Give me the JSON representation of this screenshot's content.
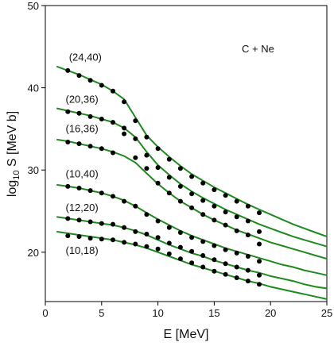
{
  "chart_data": {
    "type": "scatter",
    "xlabel": "E [MeV]",
    "ylabel": "log10 S [MeV b]",
    "xlim": [
      0,
      25
    ],
    "ylim": [
      14,
      50
    ],
    "x_ticks": [
      0,
      5,
      10,
      15,
      20,
      25
    ],
    "y_ticks": [
      20,
      30,
      40,
      50
    ],
    "grid": false,
    "annotation": "C + Ne",
    "line_color": "#1e8a1e",
    "point_color": "#000000",
    "series": [
      {
        "name": "(24,40)",
        "label_at": [
          2.1,
          43.3
        ],
        "points": [
          [
            2,
            42.1
          ],
          [
            3,
            41.5
          ],
          [
            4,
            40.9
          ],
          [
            5,
            40.3
          ],
          [
            6,
            39.6
          ],
          [
            7,
            38.3
          ],
          [
            8,
            36.0
          ],
          [
            9,
            34.0
          ],
          [
            10,
            32.6
          ],
          [
            11,
            31.3
          ],
          [
            12,
            30.2
          ],
          [
            13,
            29.2
          ],
          [
            14,
            28.4
          ],
          [
            15,
            27.6
          ],
          [
            16,
            26.9
          ],
          [
            17,
            26.2
          ],
          [
            18,
            25.6
          ],
          [
            19,
            24.8
          ]
        ],
        "curve": [
          [
            1,
            42.6
          ],
          [
            2,
            42.1
          ],
          [
            3,
            41.6
          ],
          [
            4,
            41.0
          ],
          [
            5,
            40.4
          ],
          [
            6,
            39.6
          ],
          [
            7,
            38.6
          ],
          [
            8,
            36.4
          ],
          [
            9,
            34.2
          ],
          [
            10,
            32.8
          ],
          [
            11,
            31.6
          ],
          [
            12,
            30.5
          ],
          [
            13,
            29.5
          ],
          [
            14,
            28.7
          ],
          [
            15,
            27.9
          ],
          [
            16,
            27.2
          ],
          [
            17,
            26.5
          ],
          [
            18,
            25.8
          ],
          [
            19,
            25.2
          ],
          [
            20,
            24.6
          ],
          [
            21,
            24.0
          ],
          [
            22,
            23.4
          ],
          [
            23,
            22.9
          ],
          [
            24,
            22.4
          ],
          [
            25,
            21.9
          ]
        ]
      },
      {
        "name": "(20,36)",
        "label_at": [
          1.8,
          38.2
        ],
        "points": [
          [
            2,
            37.1
          ],
          [
            3,
            36.9
          ],
          [
            4,
            36.5
          ],
          [
            5,
            36.2
          ],
          [
            6,
            35.8
          ],
          [
            7,
            35.1
          ],
          [
            8,
            33.8
          ],
          [
            9,
            31.8
          ],
          [
            10,
            30.3
          ],
          [
            11,
            29.1
          ],
          [
            12,
            28.0
          ],
          [
            13,
            27.1
          ],
          [
            14,
            26.3
          ],
          [
            15,
            25.6
          ],
          [
            16,
            24.9
          ],
          [
            17,
            24.3
          ],
          [
            18,
            23.8
          ],
          [
            19,
            22.5
          ]
        ],
        "curve": [
          [
            1,
            37.5
          ],
          [
            2,
            37.2
          ],
          [
            3,
            36.9
          ],
          [
            4,
            36.6
          ],
          [
            5,
            36.2
          ],
          [
            6,
            35.8
          ],
          [
            7,
            35.1
          ],
          [
            8,
            34.0
          ],
          [
            9,
            32.2
          ],
          [
            10,
            30.6
          ],
          [
            11,
            29.4
          ],
          [
            12,
            28.3
          ],
          [
            13,
            27.4
          ],
          [
            14,
            26.6
          ],
          [
            15,
            25.9
          ],
          [
            16,
            25.2
          ],
          [
            17,
            24.6
          ],
          [
            18,
            24.0
          ],
          [
            19,
            23.4
          ],
          [
            20,
            22.9
          ],
          [
            21,
            22.4
          ],
          [
            22,
            21.9
          ],
          [
            23,
            21.5
          ],
          [
            24,
            21.1
          ],
          [
            25,
            20.7
          ]
        ]
      },
      {
        "name": "(16,36)",
        "label_at": [
          1.8,
          34.6
        ],
        "points": [
          [
            2,
            33.4
          ],
          [
            3,
            33.2
          ],
          [
            4,
            32.9
          ],
          [
            5,
            32.6
          ],
          [
            6,
            32.1
          ],
          [
            7,
            34.4
          ],
          [
            8,
            31.5
          ],
          [
            9,
            30.2
          ],
          [
            10,
            28.4
          ],
          [
            11,
            27.2
          ],
          [
            12,
            26.2
          ],
          [
            13,
            25.4
          ],
          [
            14,
            24.6
          ],
          [
            15,
            23.9
          ],
          [
            16,
            23.3
          ],
          [
            17,
            22.6
          ],
          [
            18,
            22.1
          ],
          [
            19,
            21.0
          ]
        ],
        "curve": [
          [
            1,
            33.7
          ],
          [
            2,
            33.5
          ],
          [
            3,
            33.2
          ],
          [
            4,
            32.9
          ],
          [
            5,
            32.6
          ],
          [
            6,
            32.2
          ],
          [
            7,
            31.7
          ],
          [
            8,
            30.9
          ],
          [
            9,
            29.6
          ],
          [
            10,
            28.3
          ],
          [
            11,
            27.2
          ],
          [
            12,
            26.2
          ],
          [
            13,
            25.4
          ],
          [
            14,
            24.6
          ],
          [
            15,
            23.9
          ],
          [
            16,
            23.3
          ],
          [
            17,
            22.7
          ],
          [
            18,
            22.2
          ],
          [
            19,
            21.7
          ],
          [
            20,
            21.2
          ],
          [
            21,
            20.8
          ],
          [
            22,
            20.4
          ],
          [
            23,
            20.0
          ],
          [
            24,
            19.6
          ],
          [
            25,
            19.2
          ]
        ]
      },
      {
        "name": "(10,40)",
        "label_at": [
          1.8,
          29.1
        ],
        "points": [
          [
            2,
            28.0
          ],
          [
            3,
            27.8
          ],
          [
            4,
            27.5
          ],
          [
            5,
            27.2
          ],
          [
            6,
            26.8
          ],
          [
            7,
            26.2
          ],
          [
            8,
            25.6
          ],
          [
            9,
            24.6
          ],
          [
            10,
            23.8
          ],
          [
            11,
            23.0
          ],
          [
            12,
            22.4
          ],
          [
            13,
            21.8
          ],
          [
            14,
            21.3
          ],
          [
            15,
            20.8
          ],
          [
            16,
            20.3
          ],
          [
            17,
            19.9
          ],
          [
            18,
            19.5
          ],
          [
            19,
            18.9
          ]
        ],
        "curve": [
          [
            1,
            28.2
          ],
          [
            2,
            28.0
          ],
          [
            3,
            27.8
          ],
          [
            4,
            27.5
          ],
          [
            5,
            27.2
          ],
          [
            6,
            26.8
          ],
          [
            7,
            26.3
          ],
          [
            8,
            25.6
          ],
          [
            9,
            24.8
          ],
          [
            10,
            24.0
          ],
          [
            11,
            23.3
          ],
          [
            12,
            22.6
          ],
          [
            13,
            22.0
          ],
          [
            14,
            21.5
          ],
          [
            15,
            21.0
          ],
          [
            16,
            20.5
          ],
          [
            17,
            20.1
          ],
          [
            18,
            19.7
          ],
          [
            19,
            19.3
          ],
          [
            20,
            18.9
          ],
          [
            21,
            18.5
          ],
          [
            22,
            18.2
          ],
          [
            23,
            17.8
          ],
          [
            24,
            17.5
          ],
          [
            25,
            17.2
          ]
        ]
      },
      {
        "name": "(12,20)",
        "label_at": [
          1.8,
          25.0
        ],
        "points": [
          [
            2,
            24.1
          ],
          [
            3,
            23.9
          ],
          [
            4,
            23.7
          ],
          [
            5,
            23.5
          ],
          [
            6,
            23.4
          ],
          [
            7,
            23.0
          ],
          [
            8,
            22.5
          ],
          [
            9,
            22.2
          ],
          [
            10,
            21.8
          ],
          [
            11,
            21.1
          ],
          [
            12,
            20.6
          ],
          [
            13,
            20.1
          ],
          [
            14,
            19.6
          ],
          [
            15,
            19.1
          ],
          [
            16,
            18.6
          ],
          [
            17,
            18.2
          ],
          [
            18,
            17.8
          ],
          [
            19,
            17.2
          ]
        ],
        "curve": [
          [
            1,
            24.3
          ],
          [
            2,
            24.1
          ],
          [
            3,
            23.9
          ],
          [
            4,
            23.7
          ],
          [
            5,
            23.5
          ],
          [
            6,
            23.3
          ],
          [
            7,
            23.0
          ],
          [
            8,
            22.6
          ],
          [
            9,
            22.1
          ],
          [
            10,
            21.5
          ],
          [
            11,
            20.9
          ],
          [
            12,
            20.4
          ],
          [
            13,
            19.9
          ],
          [
            14,
            19.5
          ],
          [
            15,
            19.0
          ],
          [
            16,
            18.6
          ],
          [
            17,
            18.2
          ],
          [
            18,
            17.8
          ],
          [
            19,
            17.5
          ],
          [
            20,
            17.1
          ],
          [
            21,
            16.8
          ],
          [
            22,
            16.5
          ],
          [
            23,
            16.1
          ],
          [
            24,
            15.8
          ],
          [
            25,
            15.6
          ]
        ]
      },
      {
        "name": "(10,18)",
        "label_at": [
          1.8,
          19.8
        ],
        "points": [
          [
            2,
            22.0
          ],
          [
            3,
            21.9
          ],
          [
            4,
            21.7
          ],
          [
            5,
            21.6
          ],
          [
            6,
            21.5
          ],
          [
            7,
            21.2
          ],
          [
            8,
            21.0
          ],
          [
            9,
            20.7
          ],
          [
            10,
            20.4
          ],
          [
            11,
            19.8
          ],
          [
            12,
            19.2
          ],
          [
            13,
            18.7
          ],
          [
            14,
            18.2
          ],
          [
            15,
            17.7
          ],
          [
            16,
            17.3
          ],
          [
            17,
            16.9
          ],
          [
            18,
            16.5
          ],
          [
            19,
            16.1
          ]
        ],
        "curve": [
          [
            1,
            22.5
          ],
          [
            2,
            22.3
          ],
          [
            3,
            22.1
          ],
          [
            4,
            21.9
          ],
          [
            5,
            21.7
          ],
          [
            6,
            21.5
          ],
          [
            7,
            21.2
          ],
          [
            8,
            20.9
          ],
          [
            9,
            20.5
          ],
          [
            10,
            20.0
          ],
          [
            11,
            19.5
          ],
          [
            12,
            19.0
          ],
          [
            13,
            18.5
          ],
          [
            14,
            18.1
          ],
          [
            15,
            17.7
          ],
          [
            16,
            17.3
          ],
          [
            17,
            16.9
          ],
          [
            18,
            16.5
          ],
          [
            19,
            16.2
          ],
          [
            20,
            15.8
          ],
          [
            21,
            15.5
          ],
          [
            22,
            15.2
          ],
          [
            23,
            14.9
          ],
          [
            24,
            14.6
          ],
          [
            25,
            14.3
          ]
        ]
      }
    ]
  }
}
